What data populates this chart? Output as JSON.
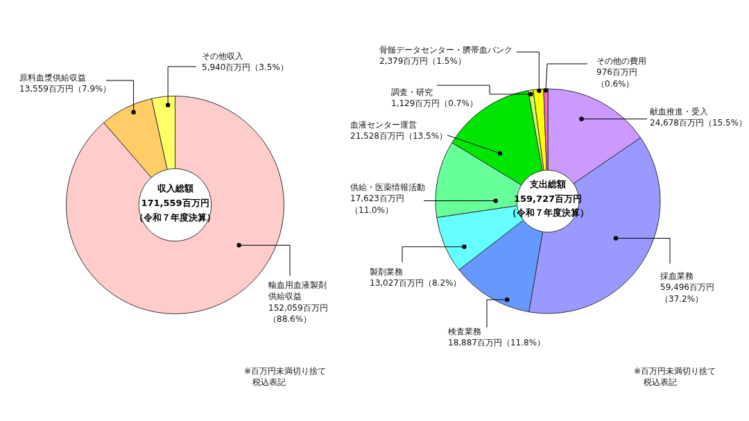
{
  "chart_data": [
    {
      "type": "donut",
      "title": "収入総額",
      "subtitle": "171,559百万円（令和７年度決算）",
      "categories": [
        "輸血用血液製剤供給収益",
        "原料血漿供給収益",
        "その他収入"
      ],
      "values": [
        152059,
        13559,
        5940
      ],
      "colors": [
        "#ffcccc",
        "#ffcc66",
        "#ffff66"
      ],
      "value_labels": [
        "152,059百万円（88.6%）",
        "13,559百万円（7.9%）",
        "5,940百万円（3.5%）"
      ],
      "annotations": [
        "※百万円未満切り捨て",
        "税込表記"
      ]
    },
    {
      "type": "donut",
      "title": "支出総額",
      "subtitle": "159,727百万円（令和７年度決算）",
      "categories": [
        "献血推進・受入",
        "採血業務",
        "検査業務",
        "製剤業務",
        "供給・医薬情報活動",
        "血液センター運営",
        "調査・研究",
        "骨髄データセンター・臍帯血バンク",
        "その他の費用"
      ],
      "values": [
        24678,
        59496,
        18887,
        13027,
        17623,
        21528,
        1129,
        2379,
        976
      ],
      "colors": [
        "#cc99ff",
        "#9999ff",
        "#6699ff",
        "#66ffff",
        "#66ff99",
        "#00e600",
        "#ccff66",
        "#ffff00",
        "#ff66cc"
      ],
      "value_labels": [
        "24,678百万円（15.5%）",
        "59,496百万円（37.2%）",
        "18,887百万円（11.8%）",
        "13,027百万円（8.2%）",
        "17,623百万円（11.0%）",
        "21,528百万円（13.5%）",
        "1,129百万円（0.7%）",
        "2,379百万円（1.5%）",
        "976百万円（0.6%）"
      ],
      "annotations": [
        "※百万円未満切り捨て",
        "税込表記"
      ]
    }
  ]
}
